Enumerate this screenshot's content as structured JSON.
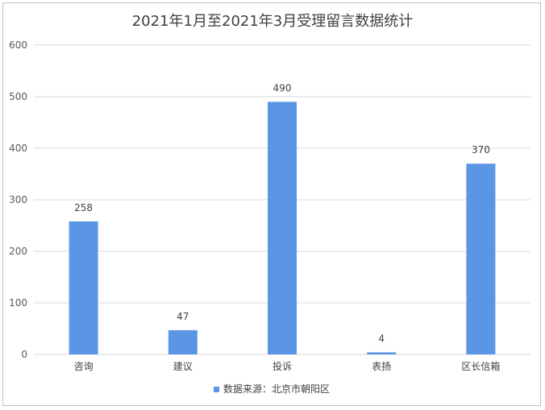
{
  "chart_data": {
    "type": "bar",
    "title": "2021年1月至2021年3月受理留言数据统计",
    "categories": [
      "咨询",
      "建议",
      "投诉",
      "表扬",
      "区长信箱"
    ],
    "series": [
      {
        "name": "数据来源：北京市朝阳区",
        "values": [
          258,
          47,
          490,
          4,
          370
        ]
      }
    ],
    "data_labels": [
      "258",
      "47",
      "490",
      "4",
      "370"
    ],
    "y_ticks": [
      "0",
      "100",
      "200",
      "300",
      "400",
      "500",
      "600"
    ],
    "ylim": [
      0,
      600
    ],
    "xlabel": "",
    "ylabel": "",
    "grid": true,
    "legend_position": "bottom",
    "bar_color": "#5b96e6",
    "grid_color": "#d9d9d9"
  }
}
